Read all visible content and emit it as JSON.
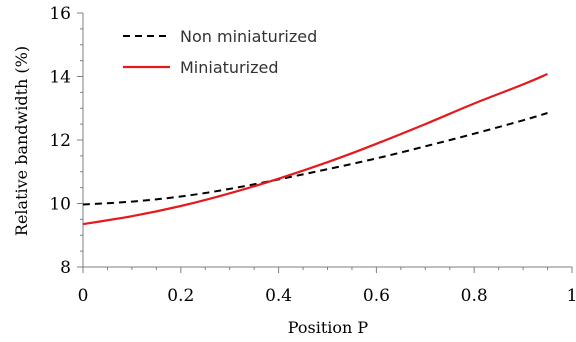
{
  "chart_data": {
    "type": "line",
    "title": "",
    "xlabel": "Position P",
    "ylabel": "Relative bandwidth (%)",
    "xlim": [
      0,
      1
    ],
    "ylim": [
      8,
      16
    ],
    "x_ticks": [
      0,
      0.2,
      0.4,
      0.6,
      0.8,
      1
    ],
    "x_tick_labels": [
      "0",
      "0.2",
      "0.4",
      "0.6",
      "0.8",
      "1"
    ],
    "y_ticks": [
      8,
      10,
      12,
      14,
      16
    ],
    "y_tick_labels": [
      "8",
      "10",
      "12",
      "14",
      "16"
    ],
    "grid": false,
    "legend_position": "top-left",
    "series": [
      {
        "name": "Non miniaturized",
        "color": "#000000",
        "style": "dashed",
        "x": [
          0,
          0.1,
          0.2,
          0.3,
          0.4,
          0.5,
          0.6,
          0.7,
          0.8,
          0.9,
          0.95
        ],
        "y": [
          9.97,
          10.06,
          10.22,
          10.46,
          10.76,
          11.08,
          11.42,
          11.8,
          12.2,
          12.62,
          12.85
        ]
      },
      {
        "name": "Miniaturized",
        "color": "#e41a1c",
        "style": "solid",
        "x": [
          0,
          0.1,
          0.2,
          0.3,
          0.4,
          0.5,
          0.6,
          0.7,
          0.8,
          0.9,
          0.95
        ],
        "y": [
          9.35,
          9.6,
          9.92,
          10.32,
          10.78,
          11.3,
          11.88,
          12.5,
          13.15,
          13.75,
          14.08
        ]
      }
    ]
  }
}
